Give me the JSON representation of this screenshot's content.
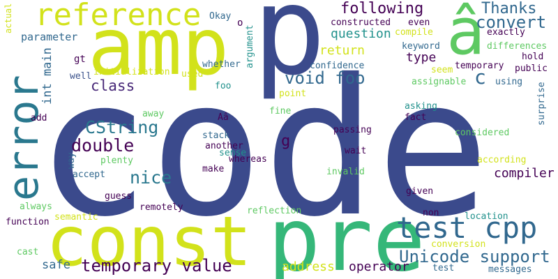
{
  "words": [
    {
      "text": "code",
      "color": "#3b4a8c"
    },
    {
      "text": "p",
      "color": "#3b4a8c"
    },
    {
      "text": "pre",
      "color": "#35b779"
    },
    {
      "text": "const",
      "color": "#d2e21b"
    },
    {
      "text": "amp",
      "color": "#d2e21b"
    },
    {
      "text": "error",
      "color": "#2a788e"
    },
    {
      "text": "reference",
      "color": "#d2e21b"
    },
    {
      "text": "â",
      "color": "#5ec962"
    },
    {
      "text": "test cpp",
      "color": "#31688e"
    },
    {
      "text": "Unicode support",
      "color": "#31688e"
    },
    {
      "text": "temporary value",
      "color": "#440154"
    },
    {
      "text": "CString",
      "color": "#2a788e"
    },
    {
      "text": "following",
      "color": "#440154"
    },
    {
      "text": "Thanks",
      "color": "#31688e"
    },
    {
      "text": "convert",
      "color": "#31688e"
    },
    {
      "text": "void foo",
      "color": "#31688e"
    },
    {
      "text": "double",
      "color": "#440154"
    },
    {
      "text": "nice",
      "color": "#2a788e"
    },
    {
      "text": "class",
      "color": "#482878"
    },
    {
      "text": "c",
      "color": "#31688e"
    },
    {
      "text": "question",
      "color": "#21918c"
    },
    {
      "text": "parameter",
      "color": "#31688e"
    },
    {
      "text": "return",
      "color": "#d2e21b"
    },
    {
      "text": "type",
      "color": "#440154"
    },
    {
      "text": "compiler",
      "color": "#440154"
    },
    {
      "text": "operator",
      "color": "#440154"
    },
    {
      "text": "address",
      "color": "#d2e21b"
    },
    {
      "text": "int main",
      "color": "#31688e"
    },
    {
      "text": "safe",
      "color": "#31688e"
    },
    {
      "text": "g",
      "color": "#440154"
    },
    {
      "text": "constructed",
      "color": "#440154"
    },
    {
      "text": "exactly",
      "color": "#440154"
    },
    {
      "text": "Okay",
      "color": "#31688e"
    },
    {
      "text": "o",
      "color": "#440154"
    },
    {
      "text": "even",
      "color": "#440154"
    },
    {
      "text": "compile",
      "color": "#d2e21b"
    },
    {
      "text": "keyword",
      "color": "#31688e"
    },
    {
      "text": "differences",
      "color": "#5ec962"
    },
    {
      "text": "hold",
      "color": "#440154"
    },
    {
      "text": "public",
      "color": "#440154"
    },
    {
      "text": "temporary",
      "color": "#440154"
    },
    {
      "text": "confidence",
      "color": "#31688e"
    },
    {
      "text": "whether",
      "color": "#31688e"
    },
    {
      "text": "seem",
      "color": "#d2e21b"
    },
    {
      "text": "assignable",
      "color": "#5ec962"
    },
    {
      "text": "using",
      "color": "#31688e"
    },
    {
      "text": "gt",
      "color": "#440154"
    },
    {
      "text": "well",
      "color": "#3b528b"
    },
    {
      "text": "initialization",
      "color": "#d2e21b"
    },
    {
      "text": "used",
      "color": "#d2e21b"
    },
    {
      "text": "foo",
      "color": "#21918c"
    },
    {
      "text": "point",
      "color": "#d2e21b"
    },
    {
      "text": "asking",
      "color": "#21918c"
    },
    {
      "text": "fact",
      "color": "#440154"
    },
    {
      "text": "surprise",
      "color": "#31688e"
    },
    {
      "text": "Aâ",
      "color": "#440154"
    },
    {
      "text": "away",
      "color": "#5ec962"
    },
    {
      "text": "fine",
      "color": "#5ec962"
    },
    {
      "text": "add",
      "color": "#440154"
    },
    {
      "text": "stack",
      "color": "#31688e"
    },
    {
      "text": "passing",
      "color": "#440154"
    },
    {
      "text": "considered",
      "color": "#5ec962"
    },
    {
      "text": "another",
      "color": "#440154"
    },
    {
      "text": "sense",
      "color": "#21918c"
    },
    {
      "text": "whereas",
      "color": "#440154"
    },
    {
      "text": "wait",
      "color": "#440154"
    },
    {
      "text": "according",
      "color": "#d2e21b"
    },
    {
      "text": "way",
      "color": "#31688e"
    },
    {
      "text": "plenty",
      "color": "#5ec962"
    },
    {
      "text": "make",
      "color": "#440154"
    },
    {
      "text": "accept",
      "color": "#31688e"
    },
    {
      "text": "invalid",
      "color": "#5ec962"
    },
    {
      "text": "given",
      "color": "#440154"
    },
    {
      "text": "always",
      "color": "#5ec962"
    },
    {
      "text": "guess",
      "color": "#440154"
    },
    {
      "text": "remotely",
      "color": "#440154"
    },
    {
      "text": "reflection",
      "color": "#5ec962"
    },
    {
      "text": "non",
      "color": "#440154"
    },
    {
      "text": "location",
      "color": "#21918c"
    },
    {
      "text": "function",
      "color": "#440154"
    },
    {
      "text": "semantic",
      "color": "#d2e21b"
    },
    {
      "text": "conversion",
      "color": "#d2e21b"
    },
    {
      "text": "cast",
      "color": "#5ec962"
    },
    {
      "text": "test",
      "color": "#31688e"
    },
    {
      "text": "messages",
      "color": "#31688e"
    },
    {
      "text": "actual",
      "color": "#d2e21b"
    },
    {
      "text": "argument",
      "color": "#21918c"
    }
  ]
}
